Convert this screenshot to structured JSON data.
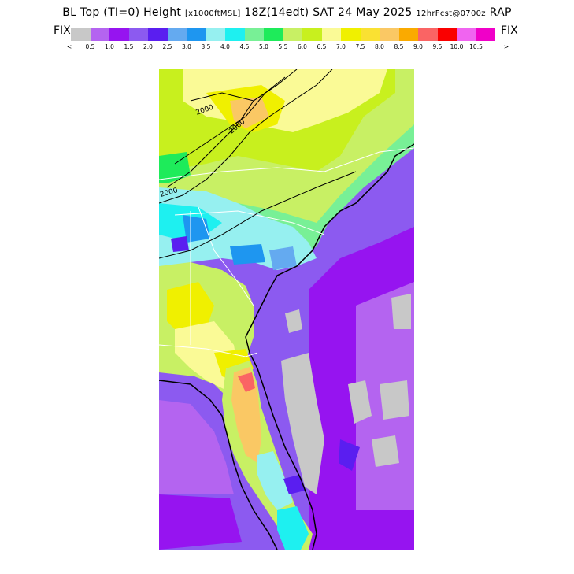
{
  "header": {
    "title_main": "BL Top (TI=0) Height",
    "title_units": "[x1000ftMSL]",
    "title_valid": "18Z(14edt) SAT 24 May 2025",
    "title_fcst": "12hrFcst@0700z",
    "title_model": "RAP"
  },
  "legend": {
    "fix_left": "FIX",
    "fix_right": "FIX",
    "less_than": "<",
    "greater_than": ">",
    "colors": [
      "#c8c8c8",
      "#b464f0",
      "#9614f0",
      "#8c5af0",
      "#5a1ef0",
      "#64aaf0",
      "#1e96f0",
      "#96f0f0",
      "#1ef0f0",
      "#78f096",
      "#1eeb5a",
      "#c8f064",
      "#c8f01e",
      "#fafa96",
      "#f0f000",
      "#fae132",
      "#fac864",
      "#faaa00",
      "#fa6464",
      "#fa0000",
      "#f064f0",
      "#f000c8"
    ],
    "labels": [
      "0.5",
      "1.0",
      "1.5",
      "2.0",
      "2.5",
      "3.0",
      "3.5",
      "4.0",
      "4.5",
      "5.0",
      "5.5",
      "6.0",
      "6.5",
      "7.0",
      "7.5",
      "8.0",
      "8.5",
      "9.0",
      "9.5",
      "10.0",
      "10.5"
    ]
  },
  "map": {
    "contour_labels": [
      "2000",
      "2000",
      "2000"
    ]
  }
}
